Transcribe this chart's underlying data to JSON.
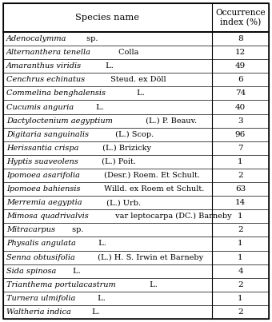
{
  "title_col1": "Species name",
  "title_col2": "Occurrence\nindex (%)",
  "rows": [
    {
      "italic": "Adenocalymma",
      "normal": " sp.",
      "value": "8"
    },
    {
      "italic": "Alternanthera tenella",
      "normal": " Colla",
      "value": "12"
    },
    {
      "italic": "Amaranthus viridis",
      "normal": " L.",
      "value": "49"
    },
    {
      "italic": "Cenchrus echinatus",
      "normal": " Steud. ex Döll",
      "value": "6"
    },
    {
      "italic": "Commelina benghalensis",
      "normal": " L.",
      "value": "74"
    },
    {
      "italic": "Cucumis anguria",
      "normal": " L.",
      "value": "40"
    },
    {
      "italic": "Dactyloctenium aegyptium",
      "normal": " (L.) P. Beauv.",
      "value": "3"
    },
    {
      "italic": "Digitaria sanguinalis",
      "normal": " (L.) Scop.",
      "value": "96"
    },
    {
      "italic": "Herissantia crispa",
      "normal": " (L.) Brizicky",
      "value": "7"
    },
    {
      "italic": "Hyptis suaveolens",
      "normal": " (L.) Poit.",
      "value": "1"
    },
    {
      "italic": "Ipomoea asarifolia",
      "normal": " (Desr.) Roem. Et Schult.",
      "value": "2"
    },
    {
      "italic": "Ipomoea bahiensis",
      "normal": " Willd. ex Roem et Schult.",
      "value": "63"
    },
    {
      "italic": "Merremia aegyptia",
      "normal": " (L.) Urb.",
      "value": "14"
    },
    {
      "italic": "Mimosa quadrivalvis",
      "normal": " var leptocarpa (DC.) Barneby",
      "value": "1"
    },
    {
      "italic": "Mitracarpus",
      "normal": " sp.",
      "value": "2"
    },
    {
      "italic": "Physalis angulata",
      "normal": " L.",
      "value": "1"
    },
    {
      "italic": "Senna obtusifolia",
      "normal": " (L.) H. S. Irwin et Barneby",
      "value": "1"
    },
    {
      "italic": "Sida spinosa",
      "normal": " L.",
      "value": "4"
    },
    {
      "italic": "Trianthema portulacastrum",
      "normal": " L.",
      "value": "2"
    },
    {
      "italic": "Turnera ulmifolia",
      "normal": " L.",
      "value": "1"
    },
    {
      "italic": "Waltheria indica",
      "normal": " L.",
      "value": "2"
    }
  ],
  "bg_color": "#ffffff",
  "border_color": "#000000",
  "header_bg": "#ffffff",
  "text_color": "#000000",
  "fontsize": 7.0,
  "header_fontsize": 8.2
}
